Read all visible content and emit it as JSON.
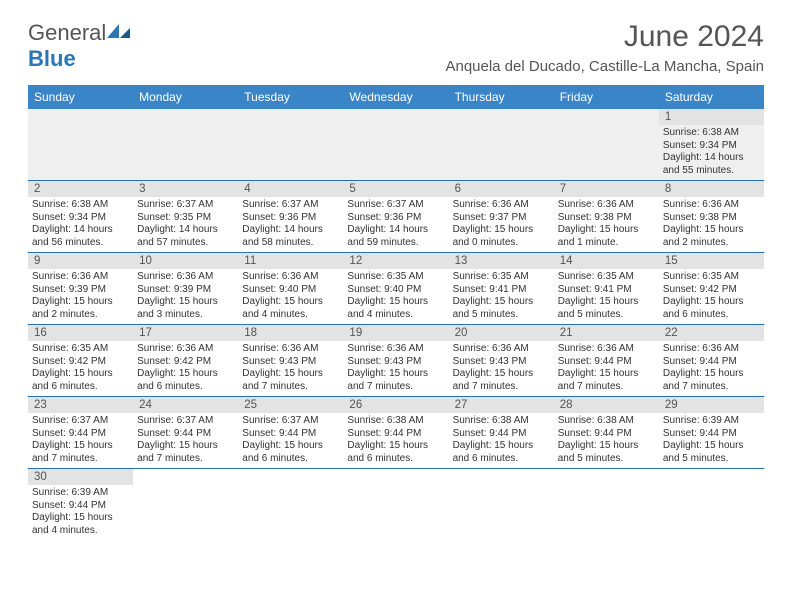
{
  "brand": {
    "name_a": "General",
    "name_b": "Blue"
  },
  "title": "June 2024",
  "location": "Anquela del Ducado, Castille-La Mancha, Spain",
  "colors": {
    "header_bg": "#3a85c7",
    "header_text": "#ffffff",
    "daynum_bg": "#e3e3e3",
    "row_border": "#2a6fa8",
    "first_row_bg": "#efefef",
    "text": "#333333",
    "title_text": "#555555",
    "brand_blue": "#2a77b8"
  },
  "typography": {
    "title_fontsize": 30,
    "location_fontsize": 15,
    "weekday_fontsize": 12,
    "daynum_fontsize": 11.5,
    "cell_fontsize": 10
  },
  "weekdays": [
    "Sunday",
    "Monday",
    "Tuesday",
    "Wednesday",
    "Thursday",
    "Friday",
    "Saturday"
  ],
  "weeks": [
    [
      null,
      null,
      null,
      null,
      null,
      null,
      {
        "n": "1",
        "sunrise": "Sunrise: 6:38 AM",
        "sunset": "Sunset: 9:34 PM",
        "daylight": "Daylight: 14 hours and 55 minutes."
      }
    ],
    [
      {
        "n": "2",
        "sunrise": "Sunrise: 6:38 AM",
        "sunset": "Sunset: 9:34 PM",
        "daylight": "Daylight: 14 hours and 56 minutes."
      },
      {
        "n": "3",
        "sunrise": "Sunrise: 6:37 AM",
        "sunset": "Sunset: 9:35 PM",
        "daylight": "Daylight: 14 hours and 57 minutes."
      },
      {
        "n": "4",
        "sunrise": "Sunrise: 6:37 AM",
        "sunset": "Sunset: 9:36 PM",
        "daylight": "Daylight: 14 hours and 58 minutes."
      },
      {
        "n": "5",
        "sunrise": "Sunrise: 6:37 AM",
        "sunset": "Sunset: 9:36 PM",
        "daylight": "Daylight: 14 hours and 59 minutes."
      },
      {
        "n": "6",
        "sunrise": "Sunrise: 6:36 AM",
        "sunset": "Sunset: 9:37 PM",
        "daylight": "Daylight: 15 hours and 0 minutes."
      },
      {
        "n": "7",
        "sunrise": "Sunrise: 6:36 AM",
        "sunset": "Sunset: 9:38 PM",
        "daylight": "Daylight: 15 hours and 1 minute."
      },
      {
        "n": "8",
        "sunrise": "Sunrise: 6:36 AM",
        "sunset": "Sunset: 9:38 PM",
        "daylight": "Daylight: 15 hours and 2 minutes."
      }
    ],
    [
      {
        "n": "9",
        "sunrise": "Sunrise: 6:36 AM",
        "sunset": "Sunset: 9:39 PM",
        "daylight": "Daylight: 15 hours and 2 minutes."
      },
      {
        "n": "10",
        "sunrise": "Sunrise: 6:36 AM",
        "sunset": "Sunset: 9:39 PM",
        "daylight": "Daylight: 15 hours and 3 minutes."
      },
      {
        "n": "11",
        "sunrise": "Sunrise: 6:36 AM",
        "sunset": "Sunset: 9:40 PM",
        "daylight": "Daylight: 15 hours and 4 minutes."
      },
      {
        "n": "12",
        "sunrise": "Sunrise: 6:35 AM",
        "sunset": "Sunset: 9:40 PM",
        "daylight": "Daylight: 15 hours and 4 minutes."
      },
      {
        "n": "13",
        "sunrise": "Sunrise: 6:35 AM",
        "sunset": "Sunset: 9:41 PM",
        "daylight": "Daylight: 15 hours and 5 minutes."
      },
      {
        "n": "14",
        "sunrise": "Sunrise: 6:35 AM",
        "sunset": "Sunset: 9:41 PM",
        "daylight": "Daylight: 15 hours and 5 minutes."
      },
      {
        "n": "15",
        "sunrise": "Sunrise: 6:35 AM",
        "sunset": "Sunset: 9:42 PM",
        "daylight": "Daylight: 15 hours and 6 minutes."
      }
    ],
    [
      {
        "n": "16",
        "sunrise": "Sunrise: 6:35 AM",
        "sunset": "Sunset: 9:42 PM",
        "daylight": "Daylight: 15 hours and 6 minutes."
      },
      {
        "n": "17",
        "sunrise": "Sunrise: 6:36 AM",
        "sunset": "Sunset: 9:42 PM",
        "daylight": "Daylight: 15 hours and 6 minutes."
      },
      {
        "n": "18",
        "sunrise": "Sunrise: 6:36 AM",
        "sunset": "Sunset: 9:43 PM",
        "daylight": "Daylight: 15 hours and 7 minutes."
      },
      {
        "n": "19",
        "sunrise": "Sunrise: 6:36 AM",
        "sunset": "Sunset: 9:43 PM",
        "daylight": "Daylight: 15 hours and 7 minutes."
      },
      {
        "n": "20",
        "sunrise": "Sunrise: 6:36 AM",
        "sunset": "Sunset: 9:43 PM",
        "daylight": "Daylight: 15 hours and 7 minutes."
      },
      {
        "n": "21",
        "sunrise": "Sunrise: 6:36 AM",
        "sunset": "Sunset: 9:44 PM",
        "daylight": "Daylight: 15 hours and 7 minutes."
      },
      {
        "n": "22",
        "sunrise": "Sunrise: 6:36 AM",
        "sunset": "Sunset: 9:44 PM",
        "daylight": "Daylight: 15 hours and 7 minutes."
      }
    ],
    [
      {
        "n": "23",
        "sunrise": "Sunrise: 6:37 AM",
        "sunset": "Sunset: 9:44 PM",
        "daylight": "Daylight: 15 hours and 7 minutes."
      },
      {
        "n": "24",
        "sunrise": "Sunrise: 6:37 AM",
        "sunset": "Sunset: 9:44 PM",
        "daylight": "Daylight: 15 hours and 7 minutes."
      },
      {
        "n": "25",
        "sunrise": "Sunrise: 6:37 AM",
        "sunset": "Sunset: 9:44 PM",
        "daylight": "Daylight: 15 hours and 6 minutes."
      },
      {
        "n": "26",
        "sunrise": "Sunrise: 6:38 AM",
        "sunset": "Sunset: 9:44 PM",
        "daylight": "Daylight: 15 hours and 6 minutes."
      },
      {
        "n": "27",
        "sunrise": "Sunrise: 6:38 AM",
        "sunset": "Sunset: 9:44 PM",
        "daylight": "Daylight: 15 hours and 6 minutes."
      },
      {
        "n": "28",
        "sunrise": "Sunrise: 6:38 AM",
        "sunset": "Sunset: 9:44 PM",
        "daylight": "Daylight: 15 hours and 5 minutes."
      },
      {
        "n": "29",
        "sunrise": "Sunrise: 6:39 AM",
        "sunset": "Sunset: 9:44 PM",
        "daylight": "Daylight: 15 hours and 5 minutes."
      }
    ],
    [
      {
        "n": "30",
        "sunrise": "Sunrise: 6:39 AM",
        "sunset": "Sunset: 9:44 PM",
        "daylight": "Daylight: 15 hours and 4 minutes."
      },
      null,
      null,
      null,
      null,
      null,
      null
    ]
  ]
}
